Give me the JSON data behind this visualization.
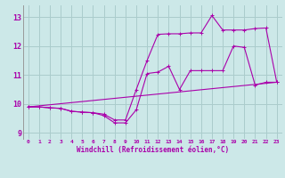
{
  "xlabel": "Windchill (Refroidissement éolien,°C)",
  "bg_color": "#cce8e8",
  "grid_color": "#aacccc",
  "line_color": "#aa00aa",
  "xlim": [
    -0.5,
    23.5
  ],
  "ylim": [
    8.8,
    13.4
  ],
  "yticks": [
    9,
    10,
    11,
    12,
    13
  ],
  "xticks": [
    0,
    1,
    2,
    3,
    4,
    5,
    6,
    7,
    8,
    9,
    10,
    11,
    12,
    13,
    14,
    15,
    16,
    17,
    18,
    19,
    20,
    21,
    22,
    23
  ],
  "line1_x": [
    0,
    1,
    2,
    3,
    4,
    5,
    6,
    7,
    8,
    9,
    10,
    11,
    12,
    13,
    14,
    15,
    16,
    17,
    18,
    19,
    20,
    21,
    22,
    23
  ],
  "line1_y": [
    9.9,
    9.9,
    9.87,
    9.85,
    9.75,
    9.72,
    9.7,
    9.6,
    9.35,
    9.35,
    9.8,
    11.05,
    11.1,
    11.3,
    10.5,
    11.15,
    11.15,
    11.15,
    11.15,
    12.0,
    11.95,
    10.65,
    10.75,
    10.75
  ],
  "line2_x": [
    0,
    1,
    2,
    3,
    4,
    5,
    6,
    7,
    8,
    9,
    10,
    11,
    12,
    13,
    14,
    15,
    16,
    17,
    18,
    19,
    20,
    21,
    22,
    23
  ],
  "line2_y": [
    9.9,
    9.9,
    9.87,
    9.85,
    9.75,
    9.72,
    9.7,
    9.65,
    9.45,
    9.45,
    10.5,
    11.5,
    12.4,
    12.42,
    12.42,
    12.45,
    12.45,
    13.05,
    12.55,
    12.55,
    12.55,
    12.6,
    12.62,
    10.75
  ],
  "line3_x": [
    0,
    23
  ],
  "line3_y": [
    9.9,
    10.75
  ]
}
